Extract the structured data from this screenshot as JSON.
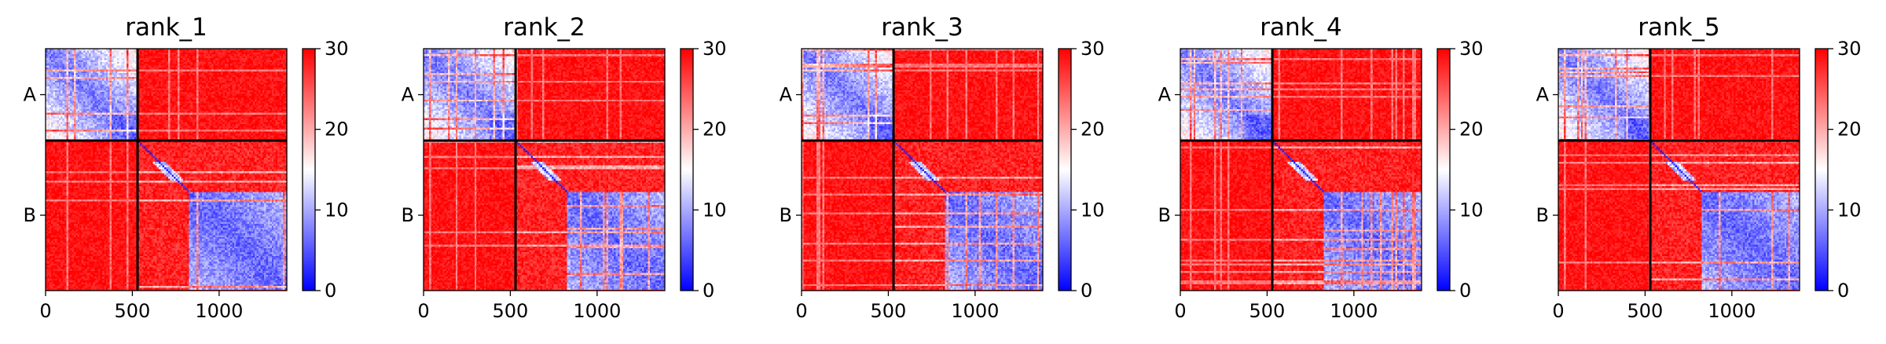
{
  "chart_data": {
    "type": "heatmap",
    "panels": [
      {
        "title": "rank_1",
        "variant": 1
      },
      {
        "title": "rank_2",
        "variant": 2
      },
      {
        "title": "rank_3",
        "variant": 3
      },
      {
        "title": "rank_4",
        "variant": 4
      },
      {
        "title": "rank_5",
        "variant": 5
      }
    ],
    "chains": [
      {
        "label": "A",
        "start": 0,
        "end": 530
      },
      {
        "label": "B",
        "start": 530,
        "end": 1390
      }
    ],
    "n_residues": 1390,
    "xlim": [
      0,
      1390
    ],
    "x_ticks": [
      {
        "value": 0,
        "label": "0"
      },
      {
        "value": 500,
        "label": "500"
      },
      {
        "value": 1000,
        "label": "1000"
      }
    ],
    "colorbar": {
      "range": [
        0,
        30
      ],
      "ticks": [
        {
          "value": 0,
          "label": "0"
        },
        {
          "value": 10,
          "label": "10"
        },
        {
          "value": 20,
          "label": "20"
        },
        {
          "value": 30,
          "label": "30"
        }
      ],
      "colormap": [
        "#0000ff",
        "#ffffff",
        "#ff0000"
      ]
    },
    "xlabel": "",
    "ylabel": "",
    "grid": false
  }
}
